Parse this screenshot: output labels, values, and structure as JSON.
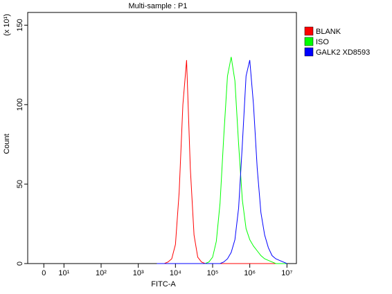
{
  "chart_data": {
    "type": "line",
    "title": "Multi-sample : P1",
    "xlabel": "FITC-A",
    "ylabel": "Count",
    "ylabel_scale": "(x 10¹)",
    "xscale": "biexponential",
    "legend": "right",
    "xlim": [
      -8,
      18000000
    ],
    "ylim": [
      0,
      158
    ],
    "xticks": [
      0,
      {
        "value": 10,
        "label": "10¹"
      },
      {
        "value": 100,
        "label": "10²"
      },
      {
        "value": 1000,
        "label": "10³"
      },
      {
        "value": 10000,
        "label": "10⁴"
      },
      {
        "value": 100000,
        "label": "10⁵"
      },
      {
        "value": 1000000,
        "label": "10⁶"
      },
      {
        "value": 10000000,
        "label": "10⁷"
      }
    ],
    "yticks": [
      0,
      50,
      100,
      150
    ],
    "x": [
      3162,
      3981,
      5012,
      6310,
      7943,
      10000,
      12589,
      15849,
      19953,
      25119,
      31623,
      39811,
      50119,
      63096,
      79433,
      100000,
      125893,
      158489,
      199526,
      251189,
      316228,
      398107,
      501187,
      630957,
      794328,
      1000000,
      1258925,
      1584893,
      1995262,
      2511886,
      3162278,
      3981072,
      5011872,
      6309573,
      7943282,
      10000000
    ],
    "series": [
      {
        "name": "BLANK",
        "color": "#ff0000",
        "values": [
          0,
          0,
          0,
          1,
          3,
          12,
          45,
          100,
          128,
          60,
          18,
          4,
          1,
          0,
          0,
          0,
          0,
          0,
          0,
          0,
          0,
          0,
          0,
          0,
          0,
          0,
          0,
          0,
          0,
          0,
          0,
          0,
          0,
          0,
          0,
          0
        ]
      },
      {
        "name": "ISO",
        "color": "#00ff00",
        "values": [
          0,
          0,
          0,
          0,
          0,
          0,
          0,
          0,
          0,
          0,
          0,
          0,
          0,
          0,
          1,
          4,
          14,
          38,
          80,
          118,
          130,
          115,
          75,
          40,
          22,
          15,
          11,
          8,
          5,
          3,
          2,
          1,
          0,
          0,
          0,
          0
        ]
      },
      {
        "name": "GALK2 XD8593",
        "color": "#0000ff",
        "values": [
          0,
          0,
          0,
          0,
          0,
          0,
          0,
          0,
          0,
          0,
          0,
          0,
          0,
          0,
          0,
          0,
          0,
          0,
          1,
          3,
          7,
          15,
          35,
          75,
          118,
          128,
          100,
          60,
          32,
          18,
          10,
          5,
          3,
          2,
          1,
          0
        ]
      }
    ]
  }
}
